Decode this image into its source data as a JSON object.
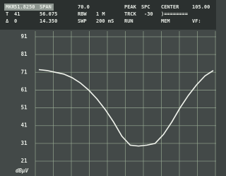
{
  "chart_data": {
    "type": "line",
    "annotations": [
      [
        "MKR",
        "51.8250",
        "SPAN",
        "70.0",
        "PEAK",
        "SPC",
        "CENTER",
        "105.00"
      ],
      [
        "T",
        "41",
        "56.075",
        "RBW",
        "1 M",
        "TRCK",
        "-30",
        ")========"
      ],
      [
        "Δ",
        "0",
        "14.350",
        "SWP",
        "200 mS",
        "RUN",
        "MEM",
        "VF:"
      ]
    ],
    "y_label": "dBµV",
    "values": [
      72.5,
      72,
      71,
      70,
      68,
      65,
      61,
      56,
      50,
      43,
      35,
      30,
      29.5,
      30,
      31,
      36,
      43,
      51,
      58,
      64,
      69,
      72
    ],
    "color": "#f2f5ee",
    "ylim": [
      21,
      91
    ],
    "yticks": [
      21,
      31,
      41,
      51,
      61,
      71,
      81,
      91
    ],
    "grid": true
  }
}
